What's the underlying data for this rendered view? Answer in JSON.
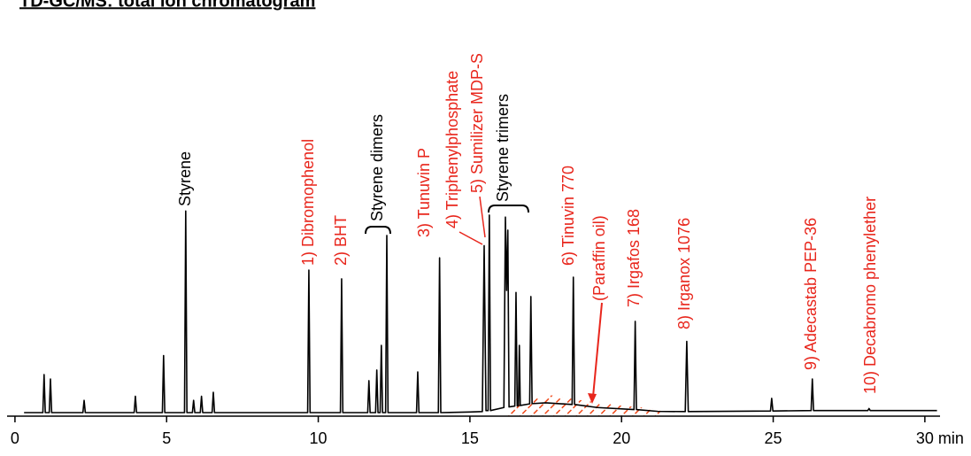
{
  "chart_data": {
    "type": "line",
    "title": "TD-GC/MS: total ion chromatogram",
    "xlim": [
      -0.26,
      30.5
    ],
    "xticks": [
      0,
      5,
      10,
      15,
      20,
      25,
      {
        "value": 30,
        "label": "30 min"
      }
    ],
    "ylim": [
      -2,
      100
    ],
    "series": [
      {
        "color": "#000000",
        "x": [
          0.3,
          0.92,
          0.96,
          1.0,
          1.13,
          1.17,
          1.21,
          2.24,
          2.28,
          2.32,
          3.93,
          3.97,
          4.01,
          4.86,
          4.9,
          4.94,
          5.59,
          5.63,
          5.67,
          5.85,
          5.89,
          5.93,
          6.11,
          6.15,
          6.19,
          6.5,
          6.54,
          6.58,
          9.65,
          9.69,
          9.73,
          10.73,
          10.77,
          10.81,
          11.63,
          11.67,
          11.71,
          11.89,
          11.93,
          11.97,
          12.04,
          12.08,
          12.12,
          12.22,
          12.26,
          12.3,
          13.24,
          13.28,
          13.32,
          13.96,
          14.0,
          14.04,
          15.0,
          15.41,
          15.47,
          15.53,
          15.6,
          15.64,
          15.68,
          16.12,
          16.17,
          16.21,
          16.25,
          16.29,
          16.48,
          16.52,
          16.56,
          16.6,
          16.63,
          16.66,
          16.97,
          17.01,
          17.05,
          17.5,
          18.37,
          18.41,
          18.45,
          19.2,
          20.41,
          20.45,
          20.49,
          21.2,
          22.1,
          22.15,
          22.2,
          24.91,
          24.95,
          24.99,
          26.25,
          26.29,
          26.33,
          28.12,
          28.16,
          28.2,
          30.4
        ],
        "values": [
          0,
          0,
          18.7,
          0,
          0,
          16.5,
          0,
          0,
          6,
          0,
          0,
          8,
          0,
          0,
          28,
          0,
          0,
          99,
          0,
          0,
          6,
          0,
          0,
          8,
          0,
          0,
          10,
          0,
          0,
          70,
          0,
          0,
          65.7,
          0,
          0,
          15.7,
          0,
          0,
          20.9,
          0,
          0,
          33,
          0,
          0,
          87,
          0,
          0,
          20,
          0,
          0,
          76,
          0,
          0.3,
          0.5,
          82,
          1,
          1,
          97,
          1,
          2.5,
          96,
          60,
          89.6,
          2.8,
          3.2,
          59,
          3.3,
          3.4,
          33,
          3.5,
          4.3,
          57,
          4.4,
          4.8,
          4,
          66.5,
          4,
          2.5,
          1.5,
          44.8,
          1.5,
          0.6,
          0.5,
          35,
          0.5,
          0.8,
          7,
          0.8,
          1,
          16.5,
          1,
          1,
          2,
          1,
          1
        ]
      }
    ],
    "annotations": [
      "Styrene",
      "1) Dibromophenol",
      "2) BHT",
      "Styrene dimers",
      "3) Tunuvin P",
      "4) Triphenylphosphate",
      "5) Sumilizer MDP-S",
      "Styrene trimers",
      "6) Tinuvin 770",
      "(Paraffin oil)",
      "7)  Irgafos 168",
      "8) Irganox 1076",
      "9) Adecastab PEP-36",
      "10) Decabromo phenylether"
    ]
  }
}
